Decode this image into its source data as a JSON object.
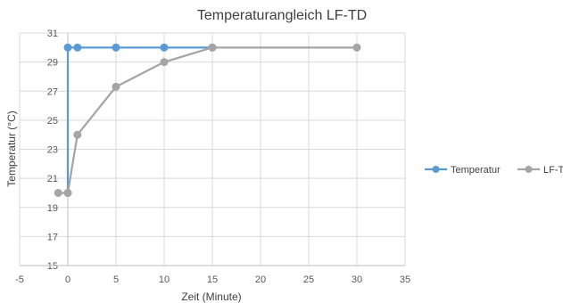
{
  "chart_data": {
    "type": "scatter",
    "title": "Temperaturangleich LF-TD",
    "xlabel": "Zeit (Minute)",
    "ylabel": "Temperatur (°C)",
    "xlim": [
      -5,
      35
    ],
    "ylim": [
      15,
      31
    ],
    "xticks": [
      "-5",
      "0",
      "5",
      "10",
      "15",
      "20",
      "25",
      "30",
      "35"
    ],
    "yticks": [
      "15",
      "17",
      "19",
      "21",
      "23",
      "25",
      "27",
      "29",
      "31"
    ],
    "grid": true,
    "legend_position": "right",
    "series": [
      {
        "name": "Temperatur",
        "color": "#5B9BD5",
        "x": [
          0,
          0,
          1,
          5,
          10,
          15
        ],
        "y": [
          20,
          30,
          30,
          30,
          30,
          30
        ]
      },
      {
        "name": "LF-TD",
        "color": "#A5A5A5",
        "x": [
          -1,
          0,
          1,
          5,
          10,
          15,
          30
        ],
        "y": [
          20,
          20,
          24,
          27.3,
          29,
          30,
          30
        ]
      }
    ]
  }
}
